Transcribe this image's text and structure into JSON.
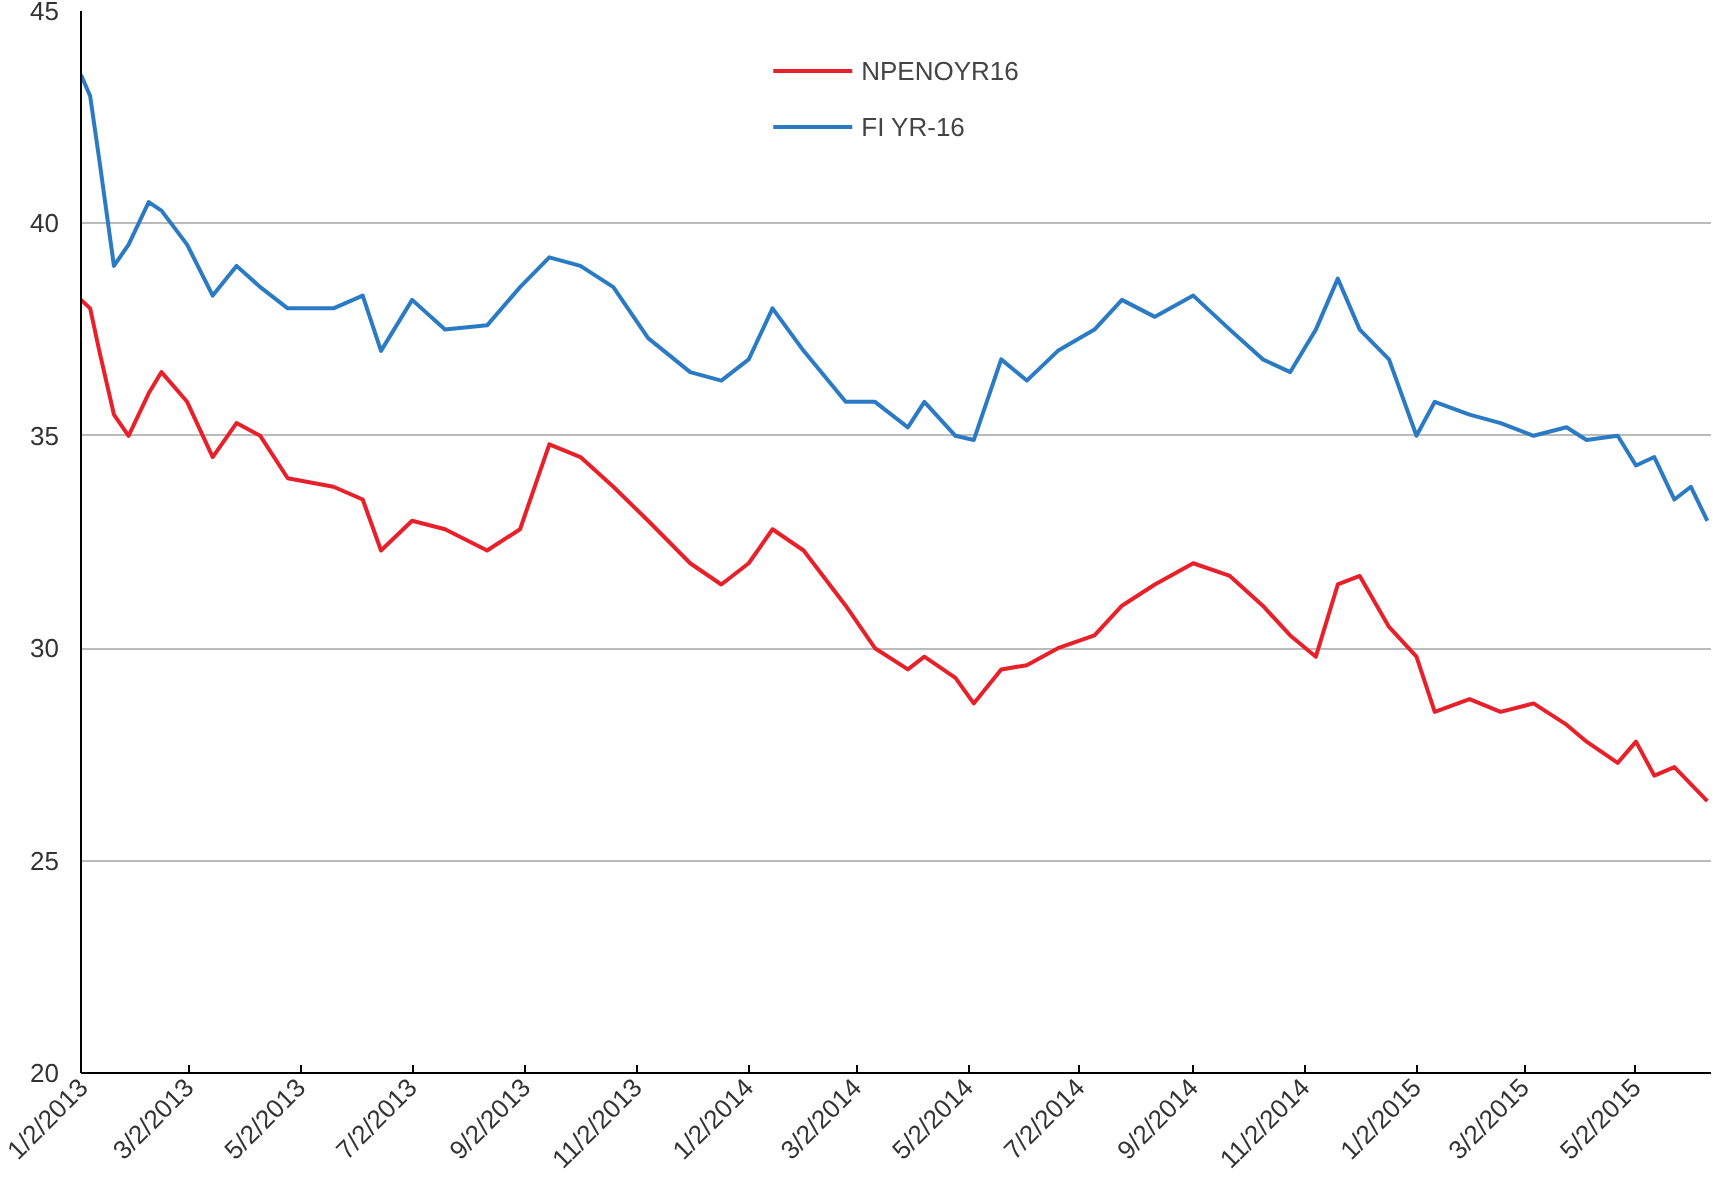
{
  "chart_data": {
    "type": "line",
    "x": [
      "2013-01-02",
      "2013-01-07",
      "2013-01-12",
      "2013-01-20",
      "2013-01-28",
      "2013-02-08",
      "2013-02-15",
      "2013-03-01",
      "2013-03-15",
      "2013-03-28",
      "2013-04-10",
      "2013-04-25",
      "2013-05-20",
      "2013-06-05",
      "2013-06-15",
      "2013-07-02",
      "2013-07-20",
      "2013-08-12",
      "2013-08-30",
      "2013-09-15",
      "2013-10-02",
      "2013-10-20",
      "2013-11-08",
      "2013-12-01",
      "2013-12-18",
      "2014-01-02",
      "2014-01-15",
      "2014-02-01",
      "2014-02-24",
      "2014-03-12",
      "2014-03-30",
      "2014-04-08",
      "2014-04-25",
      "2014-05-05",
      "2014-05-20",
      "2014-06-03",
      "2014-06-20",
      "2014-07-10",
      "2014-07-25",
      "2014-08-12",
      "2014-09-02",
      "2014-09-22",
      "2014-10-10",
      "2014-10-25",
      "2014-11-08",
      "2014-11-20",
      "2014-12-02",
      "2014-12-18",
      "2015-01-02",
      "2015-01-12",
      "2015-01-31",
      "2015-02-17",
      "2015-03-07",
      "2015-03-25",
      "2015-04-05",
      "2015-04-22",
      "2015-05-02",
      "2015-05-12",
      "2015-05-23",
      "2015-06-01",
      "2015-06-10"
    ],
    "series": [
      {
        "name": "NPENOYR16",
        "color": "#e8202a",
        "values": [
          38.2,
          38,
          37,
          35.5,
          35,
          36,
          36.5,
          35.8,
          34.5,
          35.3,
          35,
          34,
          33.8,
          33.5,
          32.3,
          33,
          32.8,
          32.3,
          32.8,
          34.8,
          34.5,
          33.8,
          33,
          32,
          31.5,
          32,
          32.8,
          32.3,
          31,
          30,
          29.5,
          29.8,
          29.3,
          28.7,
          29.5,
          29.6,
          30,
          30.3,
          31,
          31.5,
          32,
          31.7,
          31,
          30.3,
          29.8,
          31.5,
          31.7,
          30.5,
          29.8,
          28.5,
          28.8,
          28.5,
          28.7,
          28.2,
          27.8,
          27.3,
          27.8,
          27,
          27.2,
          26.8,
          26.4
        ]
      },
      {
        "name": "FI YR-16",
        "color": "#2b7bc4",
        "values": [
          43.5,
          43,
          41.5,
          39,
          39.5,
          40.5,
          40.3,
          39.5,
          38.3,
          39,
          38.5,
          38,
          38,
          38.3,
          37,
          38.2,
          37.5,
          37.6,
          38.5,
          39.2,
          39,
          38.5,
          37.3,
          36.5,
          36.3,
          36.8,
          38,
          37,
          35.8,
          35.8,
          35.2,
          35.8,
          35,
          34.9,
          36.8,
          36.3,
          37,
          37.5,
          38.2,
          37.8,
          38.3,
          37.5,
          36.8,
          36.5,
          37.5,
          38.7,
          37.5,
          36.8,
          35,
          35.8,
          35.5,
          35.3,
          35,
          35.2,
          34.9,
          35,
          34.3,
          34.5,
          33.5,
          33.8,
          33
        ]
      }
    ],
    "xlim": [
      "2013-01-02",
      "2015-06-12"
    ],
    "xticks": [
      {
        "value": "2013-01-02",
        "label": "1/2/2013"
      },
      {
        "value": "2013-03-02",
        "label": "3/2/2013"
      },
      {
        "value": "2013-05-02",
        "label": "5/2/2013"
      },
      {
        "value": "2013-07-02",
        "label": "7/2/2013"
      },
      {
        "value": "2013-09-02",
        "label": "9/2/2013"
      },
      {
        "value": "2013-11-02",
        "label": "11/2/2013"
      },
      {
        "value": "2014-01-02",
        "label": "1/2/2014"
      },
      {
        "value": "2014-03-02",
        "label": "3/2/2014"
      },
      {
        "value": "2014-05-02",
        "label": "5/2/2014"
      },
      {
        "value": "2014-07-02",
        "label": "7/2/2014"
      },
      {
        "value": "2014-09-02",
        "label": "9/2/2014"
      },
      {
        "value": "2014-11-02",
        "label": "11/2/2014"
      },
      {
        "value": "2015-01-02",
        "label": "1/2/2015"
      },
      {
        "value": "2015-03-02",
        "label": "3/2/2015"
      },
      {
        "value": "2015-05-02",
        "label": "5/2/2015"
      }
    ],
    "ylim": [
      20,
      45
    ],
    "yticks": [
      20,
      25,
      30,
      35,
      40,
      45
    ],
    "grid": "y",
    "legend": "top",
    "marker": "none",
    "line_style": "solid"
  }
}
